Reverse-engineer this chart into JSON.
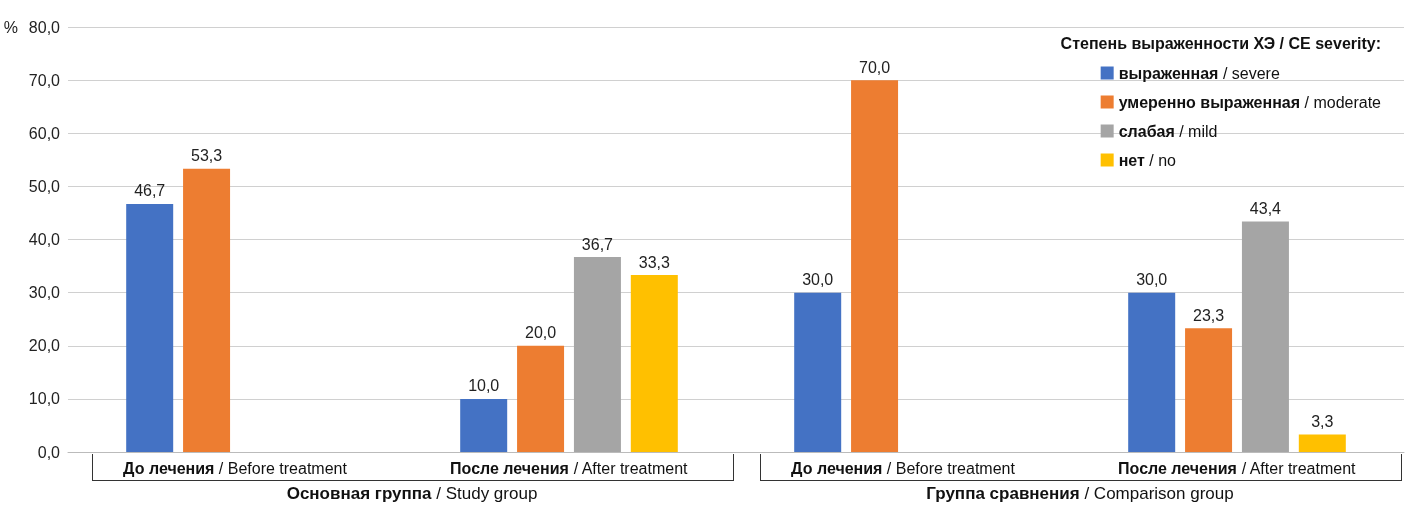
{
  "chart_data": {
    "type": "bar",
    "ylabel": "%",
    "legend_title": "Степень выраженности ХЭ / CE severity:",
    "categories": [
      "До лечения / Before treatment",
      "После лечения / After treatment",
      "До лечения / Before treatment",
      "После лечения / After treatment"
    ],
    "series": [
      {
        "name": "выраженная / severe",
        "color": "#4472c4",
        "values": [
          46.7,
          10.0,
          30.0,
          30.0
        ],
        "value_labels": [
          "46,7",
          "10,0",
          "30,0",
          "30,0"
        ]
      },
      {
        "name": "умеренно выраженная / moderate",
        "color": "#ed7d31",
        "values": [
          53.3,
          20.0,
          70.0,
          23.3
        ],
        "value_labels": [
          "53,3",
          "20,0",
          "70,0",
          "23,3"
        ]
      },
      {
        "name": "слабая / mild",
        "color": "#a5a5a5",
        "values": [
          null,
          36.7,
          null,
          43.4
        ],
        "value_labels": [
          null,
          "36,7",
          null,
          "43,4"
        ]
      },
      {
        "name": "нет / no",
        "color": "#ffc000",
        "values": [
          null,
          33.3,
          null,
          3.3
        ],
        "value_labels": [
          null,
          "33,3",
          null,
          "3,3"
        ]
      }
    ],
    "ylim": [
      0,
      80
    ],
    "yticks": [
      {
        "value": 0,
        "label": "0,0"
      },
      {
        "value": 10,
        "label": "10,0"
      },
      {
        "value": 20,
        "label": "20,0"
      },
      {
        "value": 30,
        "label": "30,0"
      },
      {
        "value": 40,
        "label": "40,0"
      },
      {
        "value": 50,
        "label": "50,0"
      },
      {
        "value": 60,
        "label": "60,0"
      },
      {
        "value": 70,
        "label": "70,0"
      },
      {
        "value": 80,
        "label": "80,0"
      }
    ],
    "grid": "y",
    "legend": "top right",
    "annotations": [
      "Основная группа / Study group",
      "Группа сравнения / Comparison group"
    ]
  }
}
